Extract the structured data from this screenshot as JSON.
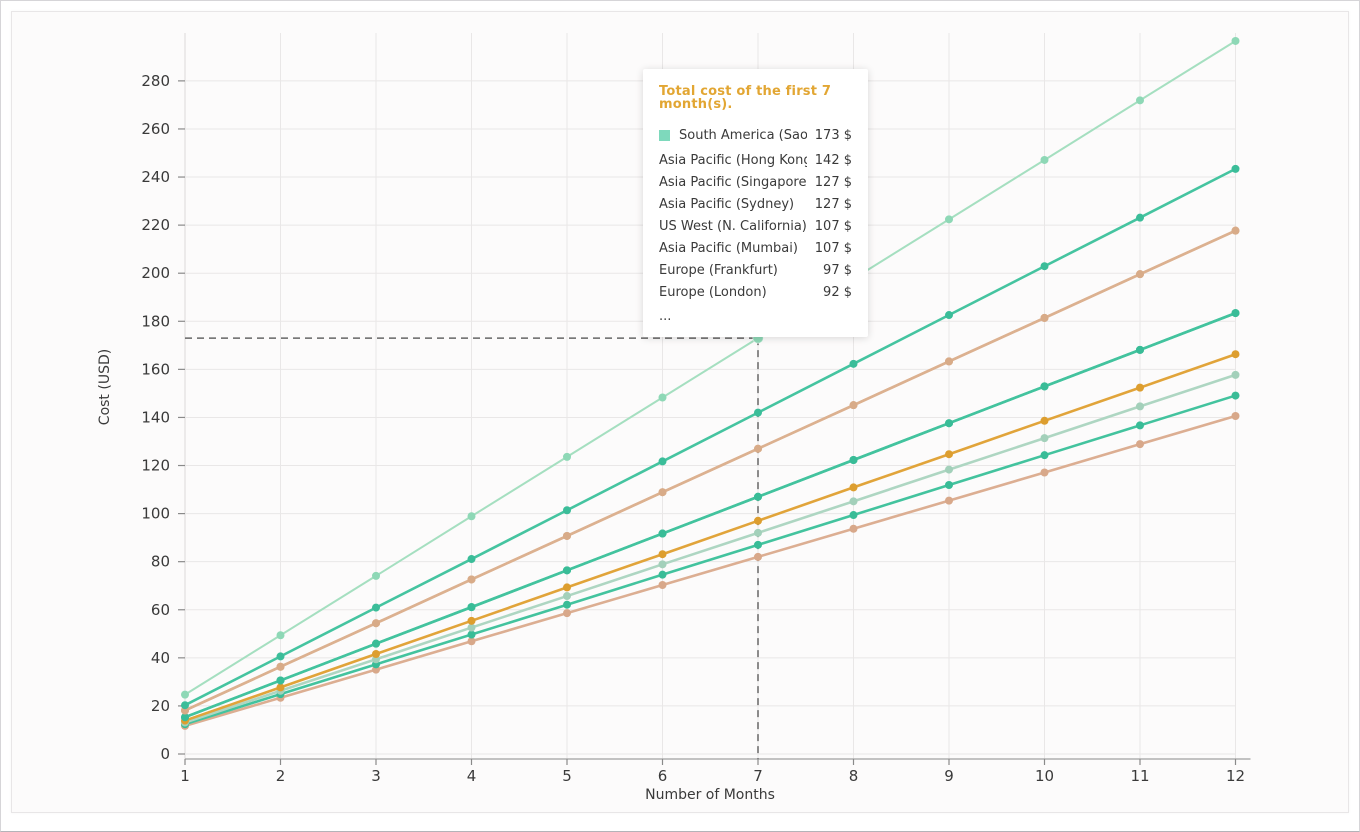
{
  "chart_data": {
    "type": "line",
    "title": "",
    "xlabel": "Number of Months",
    "ylabel": "Cost (USD)",
    "x": [
      1,
      2,
      3,
      4,
      5,
      6,
      7,
      8,
      9,
      10,
      11,
      12
    ],
    "xlim": [
      1,
      12
    ],
    "ylim": [
      0,
      300
    ],
    "yticks": [
      0,
      20,
      40,
      60,
      80,
      100,
      120,
      140,
      160,
      180,
      200,
      220,
      240,
      260,
      280
    ],
    "grid": true,
    "legend_position": "tooltip",
    "series": [
      {
        "name": "South America (Sao Paulo)",
        "color": "#a5dfc0",
        "dot_color": "#8ed8b6",
        "width": 2,
        "values": [
          24.7,
          49.4,
          74.1,
          98.9,
          123.6,
          148.3,
          173.0,
          197.7,
          222.4,
          247.1,
          271.9,
          296.6
        ]
      },
      {
        "name": "Asia Pacific (Hong Kong)",
        "color": "#45c4a0",
        "dot_color": "#3bbd99",
        "width": 2.6,
        "values": [
          20.3,
          40.6,
          60.9,
          81.1,
          101.4,
          121.7,
          142.0,
          162.3,
          182.6,
          202.9,
          223.1,
          243.4
        ]
      },
      {
        "name": "Asia Pacific (Singapore)",
        "color": "#dcb190",
        "dot_color": "#d8ab88",
        "width": 2.6,
        "values": [
          18.1,
          36.3,
          54.4,
          72.6,
          90.7,
          108.9,
          127.0,
          145.1,
          163.3,
          181.4,
          199.6,
          217.7
        ]
      },
      {
        "name": "Asia Pacific (Sydney)",
        "color": "#dcb190",
        "dot_color": "#d8ab88",
        "width": 2.6,
        "values": [
          18.1,
          36.3,
          54.4,
          72.6,
          90.7,
          108.9,
          127.0,
          145.1,
          163.3,
          181.4,
          199.6,
          217.7
        ]
      },
      {
        "name": "US West (N. California)",
        "color": "#43c39e",
        "dot_color": "#39bc97",
        "width": 2.6,
        "values": [
          15.3,
          30.6,
          45.9,
          61.1,
          76.4,
          91.7,
          107.0,
          122.3,
          137.6,
          152.9,
          168.1,
          183.4
        ]
      },
      {
        "name": "Asia Pacific (Mumbai)",
        "color": "#43c39e",
        "dot_color": "#39bc97",
        "width": 2.6,
        "values": [
          15.3,
          30.6,
          45.9,
          61.1,
          76.4,
          91.7,
          107.0,
          122.3,
          137.6,
          152.9,
          168.1,
          183.4
        ]
      },
      {
        "name": "Europe (Frankfurt)",
        "color": "#e1a43a",
        "dot_color": "#dd9e2f",
        "width": 2.6,
        "values": [
          13.9,
          27.7,
          41.6,
          55.4,
          69.3,
          83.1,
          97.0,
          110.9,
          124.7,
          138.6,
          152.4,
          166.3
        ]
      },
      {
        "name": "Europe (London)",
        "color": "#aed6c2",
        "dot_color": "#a3d0ba",
        "width": 2.6,
        "values": [
          13.1,
          26.3,
          39.4,
          52.6,
          65.7,
          78.9,
          92.0,
          105.1,
          118.3,
          131.4,
          144.6,
          157.7
        ]
      },
      {
        "name": "",
        "color": "#43c39e",
        "dot_color": "#39bc97",
        "width": 2.6,
        "values": [
          12.4,
          24.9,
          37.3,
          49.7,
          62.1,
          74.6,
          87.0,
          99.4,
          111.9,
          124.3,
          136.7,
          149.1
        ]
      },
      {
        "name": "",
        "color": "#dcae92",
        "dot_color": "#d8a88a",
        "width": 2.6,
        "values": [
          11.7,
          23.4,
          35.1,
          46.9,
          58.6,
          70.3,
          82.0,
          93.7,
          105.4,
          117.1,
          128.9,
          140.6
        ]
      }
    ],
    "crosshair": {
      "x": 7,
      "y": 173,
      "color": "#666666"
    }
  },
  "tooltip": {
    "title": "Total cost of the first 7 month(s).",
    "title_color": "#e2a633",
    "marker_color": "#7ed9bc",
    "rows": [
      {
        "label": "South America (Sao Paulo)",
        "value": "173 $",
        "marker": true
      },
      {
        "label": "Asia Pacific (Hong Kong)",
        "value": "142 $",
        "marker": false
      },
      {
        "label": "Asia Pacific (Singapore)",
        "value": "127 $",
        "marker": false
      },
      {
        "label": "Asia Pacific (Sydney)",
        "value": "127 $",
        "marker": false
      },
      {
        "label": "US West (N. California)",
        "value": "107 $",
        "marker": false
      },
      {
        "label": "Asia Pacific (Mumbai)",
        "value": "107 $",
        "marker": false
      },
      {
        "label": "Europe (Frankfurt)",
        "value": "97 $",
        "marker": false
      },
      {
        "label": "Europe (London)",
        "value": "92 $",
        "marker": false
      }
    ],
    "more_label": "..."
  },
  "colors": {
    "grid": "#e9e7e7",
    "axis_line": "#a0a0a0",
    "tick": "#8a8a8a",
    "tick_label": "#3a3a3a",
    "plot_bg": "#fcfbfb"
  }
}
